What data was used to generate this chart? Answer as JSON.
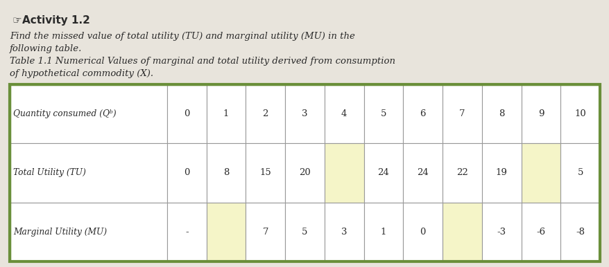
{
  "title_icon": "☞",
  "title_text": "Activity 1.2",
  "text_lines": [
    "Find the missed value of total utility (TU) and marginal utility (MU) in the",
    "following table.",
    "Table 1.1 Numerical Values of marginal and total utility derived from consumption",
    "of hypothetical commodity (X)."
  ],
  "col_headers": [
    "Quantity consumed (Qᵇ)",
    "0",
    "1",
    "2",
    "3",
    "4",
    "5",
    "6",
    "7",
    "8",
    "9",
    "10"
  ],
  "row_tu": [
    "Total Utility (TU)",
    "0",
    "8",
    "15",
    "20",
    "",
    "24",
    "24",
    "22",
    "19",
    "",
    "5"
  ],
  "row_mu": [
    "Marginal Utility (MU)",
    "-",
    "",
    "7",
    "5",
    "3",
    "1",
    "0",
    "",
    "-3",
    "-6",
    "-8"
  ],
  "highlight_cells_tu": [
    4,
    9
  ],
  "highlight_cells_mu": [
    1,
    7
  ],
  "cell_highlight_color": "#f5f5c8",
  "cell_normal_color": "#ffffff",
  "table_border_color": "#6a8f3a",
  "table_inner_color": "#999999",
  "font_color": "#2a2a2a",
  "background_page": "#e8e4dc",
  "col_widths_rel": [
    3.2,
    0.8,
    0.8,
    0.8,
    0.8,
    0.8,
    0.8,
    0.8,
    0.8,
    0.8,
    0.8,
    0.8
  ]
}
